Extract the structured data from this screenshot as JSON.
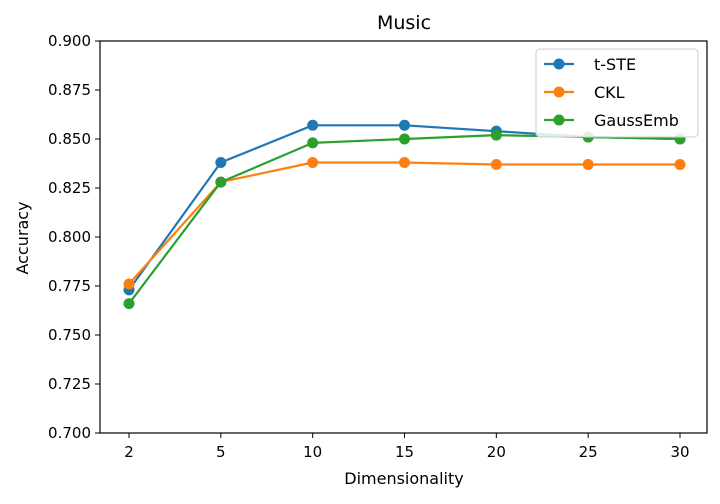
{
  "chart_data": {
    "type": "line",
    "title": "Music",
    "xlabel": "Dimensionality",
    "ylabel": "Accuracy",
    "x_ticks": [
      "2",
      "5",
      "10",
      "15",
      "20",
      "25",
      "30"
    ],
    "y_ticks": [
      "0.700",
      "0.725",
      "0.750",
      "0.775",
      "0.800",
      "0.825",
      "0.850",
      "0.875",
      "0.900"
    ],
    "ylim": [
      0.7,
      0.9
    ],
    "grid": false,
    "legend_position": "top-right",
    "series": [
      {
        "name": "t-STE",
        "color": "#1f77b4",
        "values": [
          0.773,
          0.838,
          0.857,
          0.857,
          0.854,
          0.851,
          0.85
        ]
      },
      {
        "name": "CKL",
        "color": "#ff7f0e",
        "values": [
          0.776,
          0.828,
          0.838,
          0.838,
          0.837,
          0.837,
          0.837
        ]
      },
      {
        "name": "GaussEmb",
        "color": "#2ca02c",
        "values": [
          0.766,
          0.828,
          0.848,
          0.85,
          0.852,
          0.851,
          0.85
        ]
      }
    ]
  }
}
